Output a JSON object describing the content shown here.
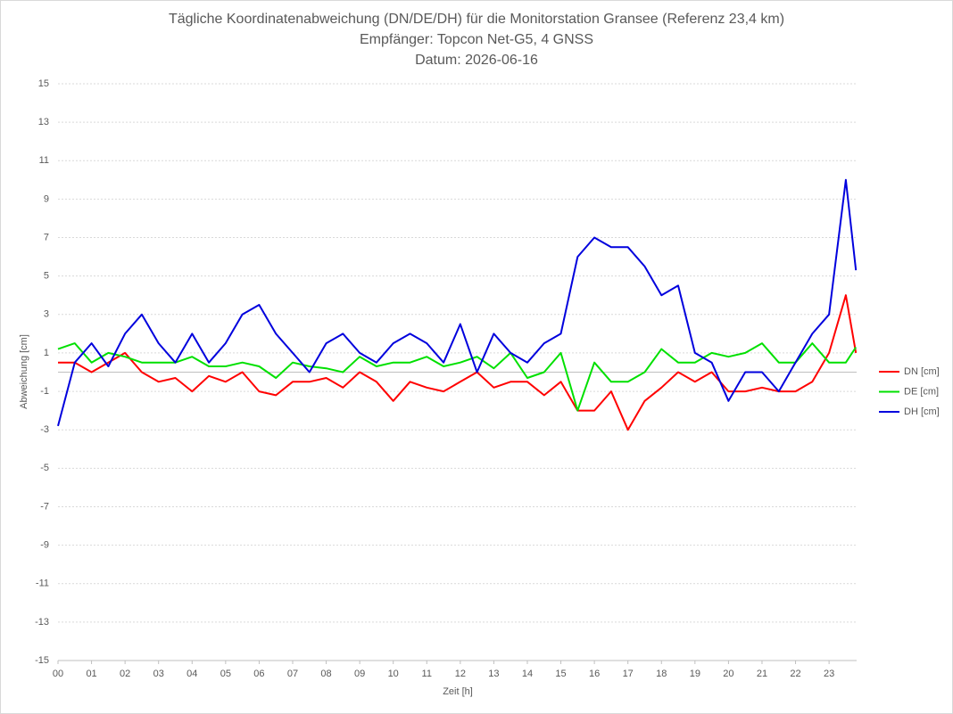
{
  "chart_data": {
    "type": "line",
    "title": "Tägliche Koordinatenabweichung (DN/DE/DH) für die Monitorstation Gransee (Referenz 23,4 km)",
    "subtitle": "Empfänger: Topcon Net-G5, 4 GNSS",
    "subtitle2": "Datum: 2026-06-16",
    "x_label": "Zeit [h]",
    "y_label": "Abweichung [cm]",
    "x": [
      0,
      0.5,
      1,
      1.5,
      2,
      2.5,
      3,
      3.5,
      4,
      4.5,
      5,
      5.5,
      6,
      6.5,
      7,
      7.5,
      8,
      8.5,
      9,
      9.5,
      10,
      10.5,
      11,
      11.5,
      12,
      12.5,
      13,
      13.5,
      14,
      14.5,
      15,
      15.5,
      16,
      16.5,
      17,
      17.5,
      18,
      18.5,
      19,
      19.5,
      20,
      20.5,
      21,
      21.5,
      22,
      22.5,
      23,
      23.5,
      23.8
    ],
    "series": [
      {
        "name": "DN [cm]",
        "color": "#ff0000",
        "values": [
          0.5,
          0.5,
          0,
          0.5,
          1,
          0,
          -0.5,
          -0.3,
          -1,
          -0.2,
          -0.5,
          0,
          -1,
          -1.2,
          -0.5,
          -0.5,
          -0.3,
          -0.8,
          0,
          -0.5,
          -1.5,
          -0.5,
          -0.8,
          -1,
          -0.5,
          0,
          -0.8,
          -0.5,
          -0.5,
          -1.2,
          -0.5,
          -2,
          -2,
          -1,
          -3,
          -1.5,
          -0.8,
          0,
          -0.5,
          0,
          -1,
          -1,
          -0.8,
          -1,
          -1,
          -0.5,
          1,
          4,
          1
        ]
      },
      {
        "name": "DE [cm]",
        "color": "#00e000",
        "values": [
          1.2,
          1.5,
          0.5,
          1,
          0.8,
          0.5,
          0.5,
          0.5,
          0.8,
          0.3,
          0.3,
          0.5,
          0.3,
          -0.3,
          0.5,
          0.3,
          0.2,
          0,
          0.8,
          0.3,
          0.5,
          0.5,
          0.8,
          0.3,
          0.5,
          0.8,
          0.2,
          1,
          -0.3,
          0,
          1,
          -2,
          0.5,
          -0.5,
          -0.5,
          0,
          1.2,
          0.5,
          0.5,
          1,
          0.8,
          1,
          1.5,
          0.5,
          0.5,
          1.5,
          0.5,
          0.5,
          1.3
        ]
      },
      {
        "name": "DH [cm]",
        "color": "#0000dd",
        "values": [
          -2.8,
          0.5,
          1.5,
          0.3,
          2,
          3,
          1.5,
          0.5,
          2,
          0.5,
          1.5,
          3,
          3.5,
          2,
          1,
          0,
          1.5,
          2,
          1,
          0.5,
          1.5,
          2,
          1.5,
          0.5,
          2.5,
          0,
          2,
          1,
          0.5,
          1.5,
          2,
          6,
          7,
          6.5,
          6.5,
          5.5,
          4,
          4.5,
          1,
          0.5,
          -1.5,
          0,
          0,
          -1,
          0.5,
          2,
          3,
          10,
          5.3
        ]
      }
    ],
    "xlim": [
      0,
      23.8
    ],
    "xticks": [
      {
        "value": 0,
        "label": "00"
      },
      {
        "value": 1,
        "label": "01"
      },
      {
        "value": 2,
        "label": "02"
      },
      {
        "value": 3,
        "label": "03"
      },
      {
        "value": 4,
        "label": "04"
      },
      {
        "value": 5,
        "label": "05"
      },
      {
        "value": 6,
        "label": "06"
      },
      {
        "value": 7,
        "label": "07"
      },
      {
        "value": 8,
        "label": "08"
      },
      {
        "value": 9,
        "label": "09"
      },
      {
        "value": 10,
        "label": "10"
      },
      {
        "value": 11,
        "label": "11"
      },
      {
        "value": 12,
        "label": "12"
      },
      {
        "value": 13,
        "label": "13"
      },
      {
        "value": 14,
        "label": "14"
      },
      {
        "value": 15,
        "label": "15"
      },
      {
        "value": 16,
        "label": "16"
      },
      {
        "value": 17,
        "label": "17"
      },
      {
        "value": 18,
        "label": "18"
      },
      {
        "value": 19,
        "label": "19"
      },
      {
        "value": 20,
        "label": "20"
      },
      {
        "value": 21,
        "label": "21"
      },
      {
        "value": 22,
        "label": "22"
      },
      {
        "value": 23,
        "label": "23"
      }
    ],
    "ylim": [
      -15,
      15
    ],
    "yticks": [
      -15,
      -13,
      -11,
      -9,
      -7,
      -5,
      -3,
      -1,
      1,
      3,
      5,
      7,
      9,
      11,
      13,
      15
    ],
    "grid": true,
    "legend": "right"
  }
}
